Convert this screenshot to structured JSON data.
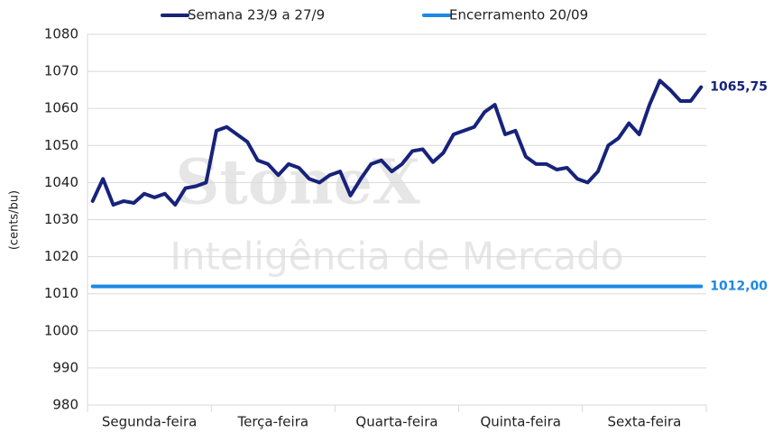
{
  "chart_data": {
    "type": "line",
    "y_label": "(cents/bu)",
    "watermark": [
      "StoneX",
      "Inteligência de Mercado"
    ],
    "categories": [
      null,
      null,
      null,
      null,
      null,
      null,
      "Segunda-feira",
      null,
      null,
      null,
      null,
      null,
      null,
      null,
      null,
      null,
      null,
      null,
      "Terça-feira",
      null,
      null,
      null,
      null,
      null,
      null,
      null,
      null,
      null,
      null,
      null,
      "Quarta-feira",
      null,
      null,
      null,
      null,
      null,
      null,
      null,
      null,
      null,
      null,
      null,
      "Quinta-feira",
      null,
      null,
      null,
      null,
      null,
      null,
      null,
      null,
      null,
      null,
      null,
      "Sexta-feira",
      null,
      null,
      null,
      null,
      null
    ],
    "ylim": [
      980,
      1080
    ],
    "yticks": [
      980,
      990,
      1000,
      1010,
      1020,
      1030,
      1040,
      1050,
      1060,
      1070,
      1080
    ],
    "grid": true,
    "legend": "top",
    "series": [
      {
        "name": "Semana 23/9 a 27/9",
        "color": "#17237a",
        "values": [
          1035,
          1041,
          1034,
          1035,
          1034.5,
          1037,
          1036,
          1037,
          1034,
          1038.5,
          1039,
          1040,
          1054,
          1055,
          1053,
          1051,
          1046,
          1045,
          1042,
          1045,
          1044,
          1041,
          1040,
          1042,
          1043,
          1036.5,
          1041,
          1045,
          1046,
          1043,
          1045,
          1048.5,
          1049,
          1045.5,
          1048,
          1053,
          1054,
          1055,
          1059,
          1061,
          1053,
          1054,
          1047,
          1045,
          1045,
          1043.5,
          1044,
          1041,
          1040,
          1043,
          1050,
          1052,
          1056,
          1053,
          1061,
          1067.5,
          1065,
          1062,
          1062,
          1065.75
        ],
        "value_labels": [
          null,
          null,
          null,
          null,
          null,
          null,
          null,
          null,
          null,
          null,
          null,
          null,
          null,
          null,
          null,
          null,
          null,
          null,
          null,
          null,
          null,
          null,
          null,
          null,
          null,
          null,
          null,
          null,
          null,
          null,
          null,
          null,
          null,
          null,
          null,
          null,
          null,
          null,
          null,
          null,
          null,
          null,
          null,
          null,
          null,
          null,
          null,
          null,
          null,
          null,
          null,
          null,
          null,
          null,
          null,
          null,
          null,
          null,
          null,
          "1065,75"
        ]
      },
      {
        "name": "Encerramento 20/09",
        "color": "#1e88e5",
        "values": [
          1012,
          1012,
          1012,
          1012,
          1012,
          1012,
          1012,
          1012,
          1012,
          1012,
          1012,
          1012,
          1012,
          1012,
          1012,
          1012,
          1012,
          1012,
          1012,
          1012,
          1012,
          1012,
          1012,
          1012,
          1012,
          1012,
          1012,
          1012,
          1012,
          1012,
          1012,
          1012,
          1012,
          1012,
          1012,
          1012,
          1012,
          1012,
          1012,
          1012,
          1012,
          1012,
          1012,
          1012,
          1012,
          1012,
          1012,
          1012,
          1012,
          1012,
          1012,
          1012,
          1012,
          1012,
          1012,
          1012,
          1012,
          1012,
          1012,
          1012
        ],
        "value_labels": [
          null,
          null,
          null,
          null,
          null,
          null,
          null,
          null,
          null,
          null,
          null,
          null,
          null,
          null,
          null,
          null,
          null,
          null,
          null,
          null,
          null,
          null,
          null,
          null,
          null,
          null,
          null,
          null,
          null,
          null,
          null,
          null,
          null,
          null,
          null,
          null,
          null,
          null,
          null,
          null,
          null,
          null,
          null,
          null,
          null,
          null,
          null,
          null,
          null,
          null,
          null,
          null,
          null,
          null,
          null,
          null,
          null,
          null,
          null,
          "1012,00"
        ]
      }
    ]
  }
}
